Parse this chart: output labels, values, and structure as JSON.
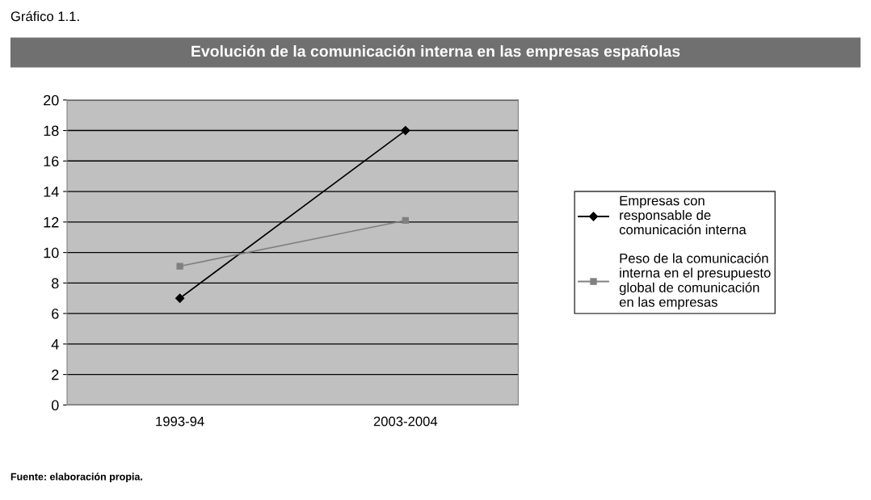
{
  "chart_data": {
    "type": "line",
    "title": "Evolución de la comunicación interna en las empresas españolas",
    "annotations": [
      "Gráfico 1.1.",
      "Fuente: elaboración propia."
    ],
    "categories": [
      "1993-94",
      "2003-2004"
    ],
    "series": [
      {
        "name": "Empresas con\nresponsable de\ncomunicación interna",
        "color": "#000000",
        "marker": "diamond",
        "values": [
          7,
          18
        ]
      },
      {
        "name": "Peso de la comunicación\ninterna en el presupuesto\nglobal de comunicación\nen las empresas",
        "color": "#808080",
        "marker": "square",
        "values": [
          9.1,
          12.1
        ]
      }
    ],
    "ylim": [
      0,
      20
    ],
    "yticks": [
      0,
      2,
      4,
      6,
      8,
      10,
      12,
      14,
      16,
      18,
      20
    ],
    "grid": "y",
    "legend": "right",
    "line_style": "solid"
  }
}
